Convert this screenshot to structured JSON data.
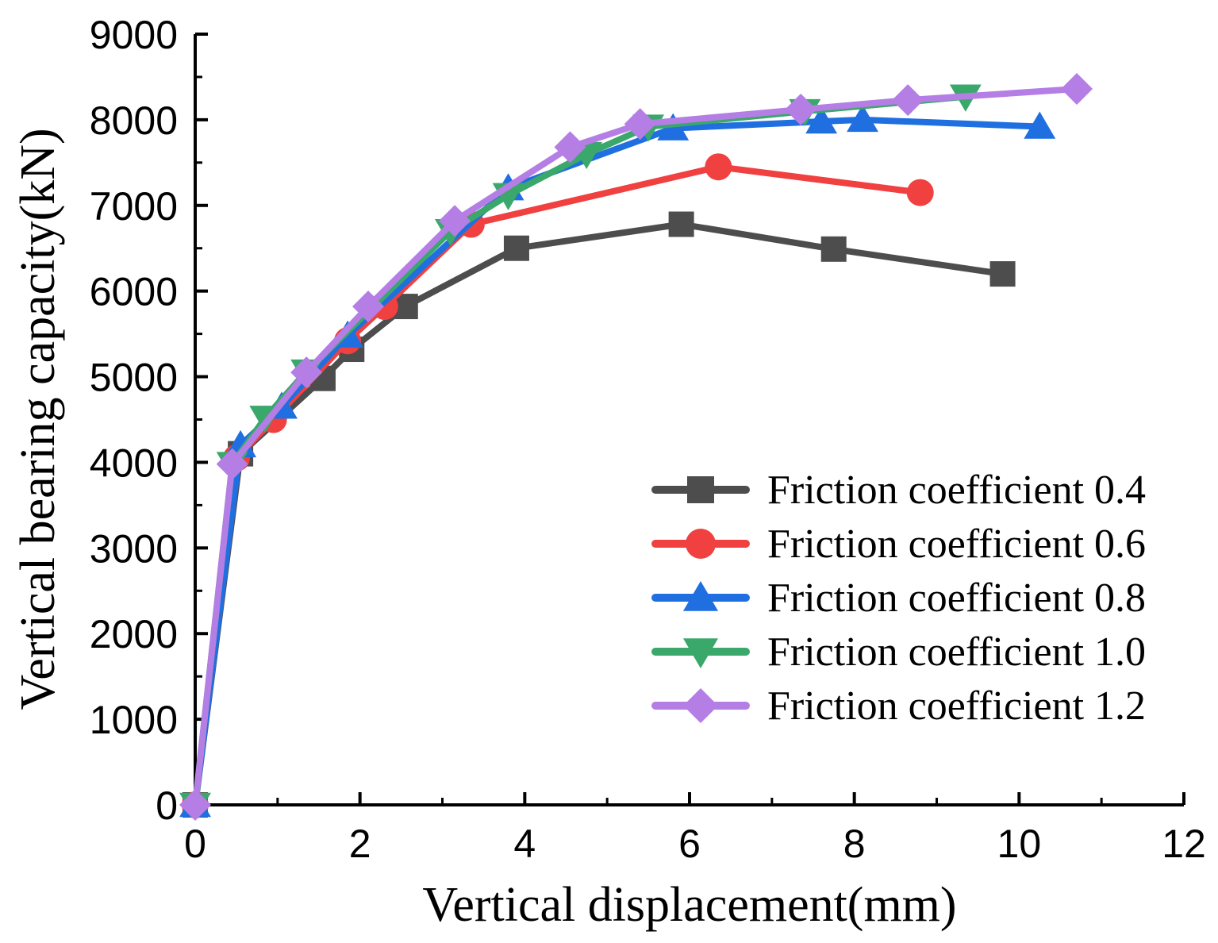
{
  "chart_data": {
    "type": "line",
    "title": "",
    "xlabel": "Vertical displacement(mm)",
    "ylabel": "Vertical bearing capacity(kN)",
    "xlim": [
      0,
      12
    ],
    "ylim": [
      0,
      9000
    ],
    "xticks": [
      0,
      2,
      4,
      6,
      8,
      10,
      12
    ],
    "yticks": [
      0,
      1000,
      2000,
      3000,
      4000,
      5000,
      6000,
      7000,
      8000,
      9000
    ],
    "grid": false,
    "legend_position": "bottom-right",
    "series": [
      {
        "name": "Friction coefficient 0.4",
        "color": "#4d4d4d",
        "marker": "square",
        "x": [
          0,
          0.55,
          1.55,
          1.9,
          2.55,
          3.9,
          5.9,
          7.75,
          9.8
        ],
        "y": [
          0,
          4100,
          4980,
          5320,
          5820,
          6500,
          6780,
          6490,
          6200
        ]
      },
      {
        "name": "Friction coefficient 0.6",
        "color": "#f04040",
        "marker": "circle",
        "x": [
          0,
          0.5,
          0.95,
          1.85,
          2.3,
          3.35,
          6.35,
          8.8
        ],
        "y": [
          0,
          4050,
          4500,
          5420,
          5820,
          6780,
          7450,
          7150
        ]
      },
      {
        "name": "Friction coefficient 0.8",
        "color": "#1f6fe0",
        "marker": "triangle-up",
        "x": [
          0,
          0.55,
          1.05,
          1.85,
          3.8,
          5.8,
          7.6,
          8.1,
          10.25
        ],
        "y": [
          0,
          4200,
          4650,
          5480,
          7200,
          7900,
          7980,
          8000,
          7920
        ]
      },
      {
        "name": "Friction coefficient 1.0",
        "color": "#3aa86b",
        "marker": "triangle-down",
        "x": [
          0,
          0.45,
          0.85,
          1.35,
          3.1,
          3.8,
          4.75,
          5.5,
          7.4,
          9.35
        ],
        "y": [
          0,
          3980,
          4520,
          5060,
          6700,
          7120,
          7600,
          7920,
          8100,
          8270
        ]
      },
      {
        "name": "Friction coefficient 1.2",
        "color": "#b47ee5",
        "marker": "diamond",
        "x": [
          0,
          0.45,
          1.35,
          2.1,
          3.15,
          4.55,
          5.4,
          7.35,
          8.65,
          10.7
        ],
        "y": [
          0,
          3980,
          5050,
          5820,
          6820,
          7680,
          7950,
          8120,
          8230,
          8360
        ]
      }
    ]
  }
}
